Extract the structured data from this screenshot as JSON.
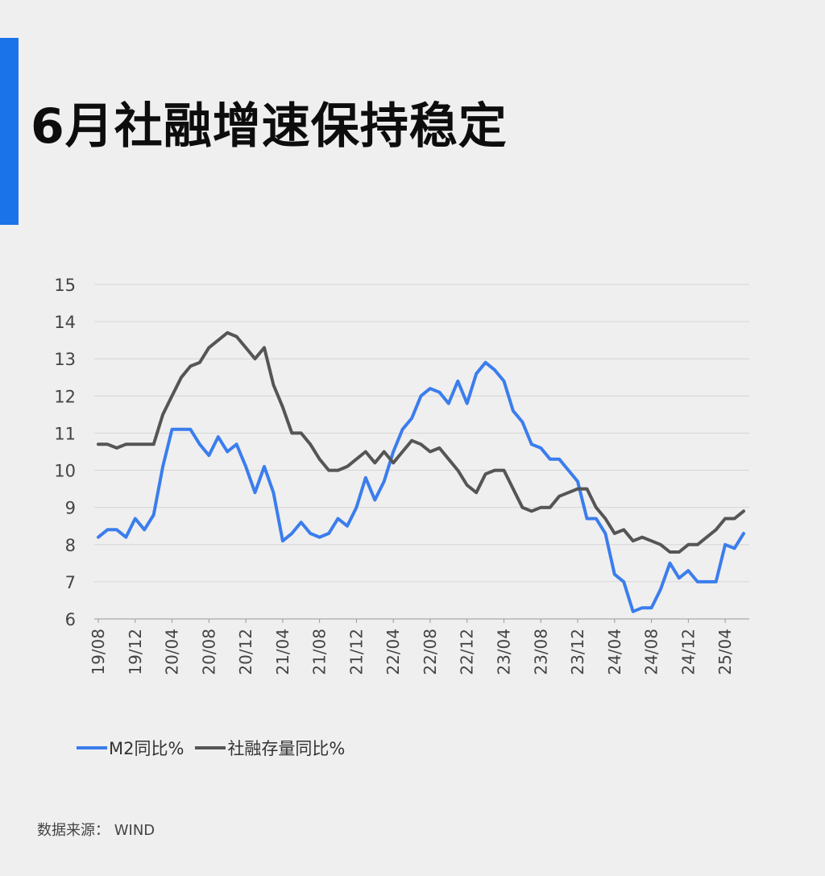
{
  "header": {
    "title": "6月社融增速保持稳定",
    "accent_color": "#1a73e8"
  },
  "legend": [
    {
      "label": "M2同比%",
      "color": "#3b7ded"
    },
    {
      "label": "社融存量同比%",
      "color": "#555555"
    }
  ],
  "source": "数据来源： WIND",
  "chart_data": {
    "type": "line",
    "ylim": [
      6,
      15
    ],
    "yticks": [
      6,
      7,
      8,
      9,
      10,
      11,
      12,
      13,
      14,
      15
    ],
    "grid": true,
    "x_tick_labels": [
      "19/08",
      "19/12",
      "20/04",
      "20/08",
      "20/12",
      "21/04",
      "21/08",
      "21/12",
      "22/04",
      "22/08",
      "22/12",
      "23/04",
      "23/08",
      "23/12",
      "24/04",
      "24/08",
      "24/12",
      "25/04"
    ],
    "x": [
      "19/08",
      "19/09",
      "19/10",
      "19/11",
      "19/12",
      "20/01",
      "20/02",
      "20/03",
      "20/04",
      "20/05",
      "20/06",
      "20/07",
      "20/08",
      "20/09",
      "20/10",
      "20/11",
      "20/12",
      "21/01",
      "21/02",
      "21/03",
      "21/04",
      "21/05",
      "21/06",
      "21/07",
      "21/08",
      "21/09",
      "21/10",
      "21/11",
      "21/12",
      "22/01",
      "22/02",
      "22/03",
      "22/04",
      "22/05",
      "22/06",
      "22/07",
      "22/08",
      "22/09",
      "22/10",
      "22/11",
      "22/12",
      "23/01",
      "23/02",
      "23/03",
      "23/04",
      "23/05",
      "23/06",
      "23/07",
      "23/08",
      "23/09",
      "23/10",
      "23/11",
      "23/12",
      "24/01",
      "24/02",
      "24/03",
      "24/04",
      "24/05",
      "24/06",
      "24/07",
      "24/08",
      "24/09",
      "24/10",
      "24/11",
      "24/12",
      "25/01",
      "25/02",
      "25/03",
      "25/04",
      "25/05",
      "25/06"
    ],
    "series": [
      {
        "name": "M2同比%",
        "color": "#3b7ded",
        "values": [
          8.2,
          8.4,
          8.4,
          8.2,
          8.7,
          8.4,
          8.8,
          10.1,
          11.1,
          11.1,
          11.1,
          10.7,
          10.4,
          10.9,
          10.5,
          10.7,
          10.1,
          9.4,
          10.1,
          9.4,
          8.1,
          8.3,
          8.6,
          8.3,
          8.2,
          8.3,
          8.7,
          8.5,
          9.0,
          9.8,
          9.2,
          9.7,
          10.5,
          11.1,
          11.4,
          12.0,
          12.2,
          12.1,
          11.8,
          12.4,
          11.8,
          12.6,
          12.9,
          12.7,
          12.4,
          11.6,
          11.3,
          10.7,
          10.6,
          10.3,
          10.3,
          10.0,
          9.7,
          8.7,
          8.7,
          8.3,
          7.2,
          7.0,
          6.2,
          6.3,
          6.3,
          6.8,
          7.5,
          7.1,
          7.3,
          7.0,
          7.0,
          7.0,
          8.0,
          7.9,
          8.3
        ]
      },
      {
        "name": "社融存量同比%",
        "color": "#555555",
        "values": [
          10.7,
          10.7,
          10.6,
          10.7,
          10.7,
          10.7,
          10.7,
          11.5,
          12.0,
          12.5,
          12.8,
          12.9,
          13.3,
          13.5,
          13.7,
          13.6,
          13.3,
          13.0,
          13.3,
          12.3,
          11.7,
          11.0,
          11.0,
          10.7,
          10.3,
          10.0,
          10.0,
          10.1,
          10.3,
          10.5,
          10.2,
          10.5,
          10.2,
          10.5,
          10.8,
          10.7,
          10.5,
          10.6,
          10.3,
          10.0,
          9.6,
          9.4,
          9.9,
          10.0,
          10.0,
          9.5,
          9.0,
          8.9,
          9.0,
          9.0,
          9.3,
          9.4,
          9.5,
          9.5,
          9.0,
          8.7,
          8.3,
          8.4,
          8.1,
          8.2,
          8.1,
          8.0,
          7.8,
          7.8,
          8.0,
          8.0,
          8.2,
          8.4,
          8.7,
          8.7,
          8.9
        ]
      }
    ]
  }
}
